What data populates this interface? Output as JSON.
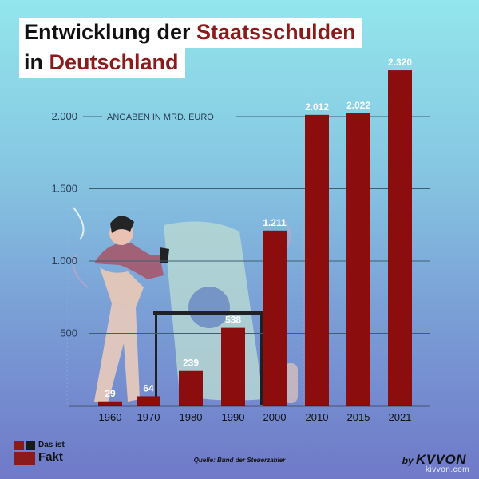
{
  "title": {
    "line1_plain": "Entwicklung der ",
    "line1_accent": "Staatsschulden",
    "line2_plain": "in ",
    "line2_accent": "Deutschland"
  },
  "footer": {
    "source": "Quelle: Bund der Steuerzahler",
    "brand_left_line1": "Das ist",
    "brand_left_line2": "Fakt",
    "brand_right_by": "by ",
    "brand_right_name": "KVVON",
    "watermark": "kivvon.com"
  },
  "colors": {
    "bar": "#8b0d0d",
    "gridline": "#3e5f72",
    "axis_text": "#2a3d55",
    "label_text": "#ffffff"
  },
  "chart_data": {
    "type": "bar",
    "title": "Entwicklung der Staatsschulden in Deutschland",
    "subtitle": "ANGABEN IN MRD. EURO",
    "categories": [
      "1960",
      "1970",
      "1980",
      "1990",
      "2000",
      "2010",
      "2015",
      "2021"
    ],
    "values": [
      29,
      64,
      239,
      538,
      1211,
      2012,
      2022,
      2320
    ],
    "value_labels": [
      "29",
      "64",
      "239",
      "538",
      "1.211",
      "2.012",
      "2.022",
      "2.320"
    ],
    "y_ticks": [
      500,
      1000,
      1500,
      2000
    ],
    "y_tick_labels": [
      "500",
      "1.000",
      "1.500",
      "2.000"
    ],
    "ylim": [
      0,
      2320
    ],
    "grid": true,
    "xlabel": "",
    "ylabel": ""
  }
}
